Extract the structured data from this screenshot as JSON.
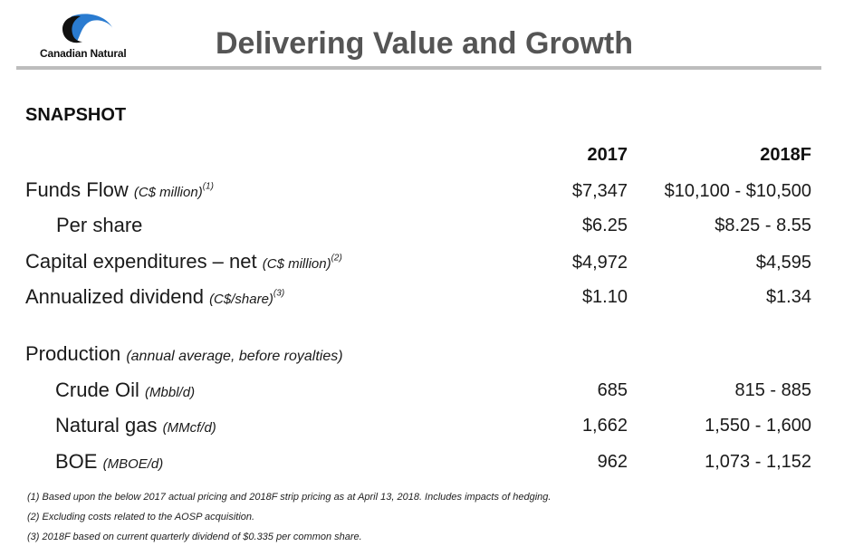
{
  "logo": {
    "text": "Canadian Natural"
  },
  "page_title": "Delivering Value and Growth",
  "section_heading": "SNAPSHOT",
  "columns": [
    "2017",
    "2018F"
  ],
  "rows": [
    {
      "label": "Funds Flow",
      "unit": "(C$ million)",
      "note_ref": "(1)",
      "v2017": "$7,347",
      "v2018": "$10,100 - $10,500"
    },
    {
      "label": "Per share",
      "unit": "",
      "note_ref": "",
      "v2017": "$6.25",
      "v2018": "$8.25 - 8.55"
    },
    {
      "label": "Capital expenditures – net",
      "unit": "(C$ million)",
      "note_ref": "(2)",
      "v2017": "$4,972",
      "v2018": "$4,595"
    },
    {
      "label": "Annualized dividend",
      "unit": "(C$/share)",
      "note_ref": "(3)",
      "v2017": "$1.10",
      "v2018": "$1.34"
    }
  ],
  "production": {
    "label": "Production",
    "unit": "(annual average, before royalties)",
    "rows": [
      {
        "label": "Crude Oil",
        "unit": "(Mbbl/d)",
        "v2017": "685",
        "v2018": "815 - 885"
      },
      {
        "label": "Natural gas",
        "unit": "(MMcf/d)",
        "v2017": "1,662",
        "v2018": "1,550 - 1,600"
      },
      {
        "label": "BOE",
        "unit": "(MBOE/d)",
        "v2017": "962",
        "v2018": "1,073 - 1,152"
      }
    ]
  },
  "footnotes": [
    "(1) Based upon the below 2017 actual pricing and 2018F strip pricing as at April 13, 2018. Includes impacts of hedging.",
    "(2) Excluding costs related to the AOSP acquisition.",
    "(3) 2018F based on current quarterly dividend of $0.335 per common share."
  ],
  "colors": {
    "title": "#555555",
    "rule": "#bdbdbd",
    "logo_blue": "#2a7bd0",
    "logo_dark": "#111111"
  }
}
